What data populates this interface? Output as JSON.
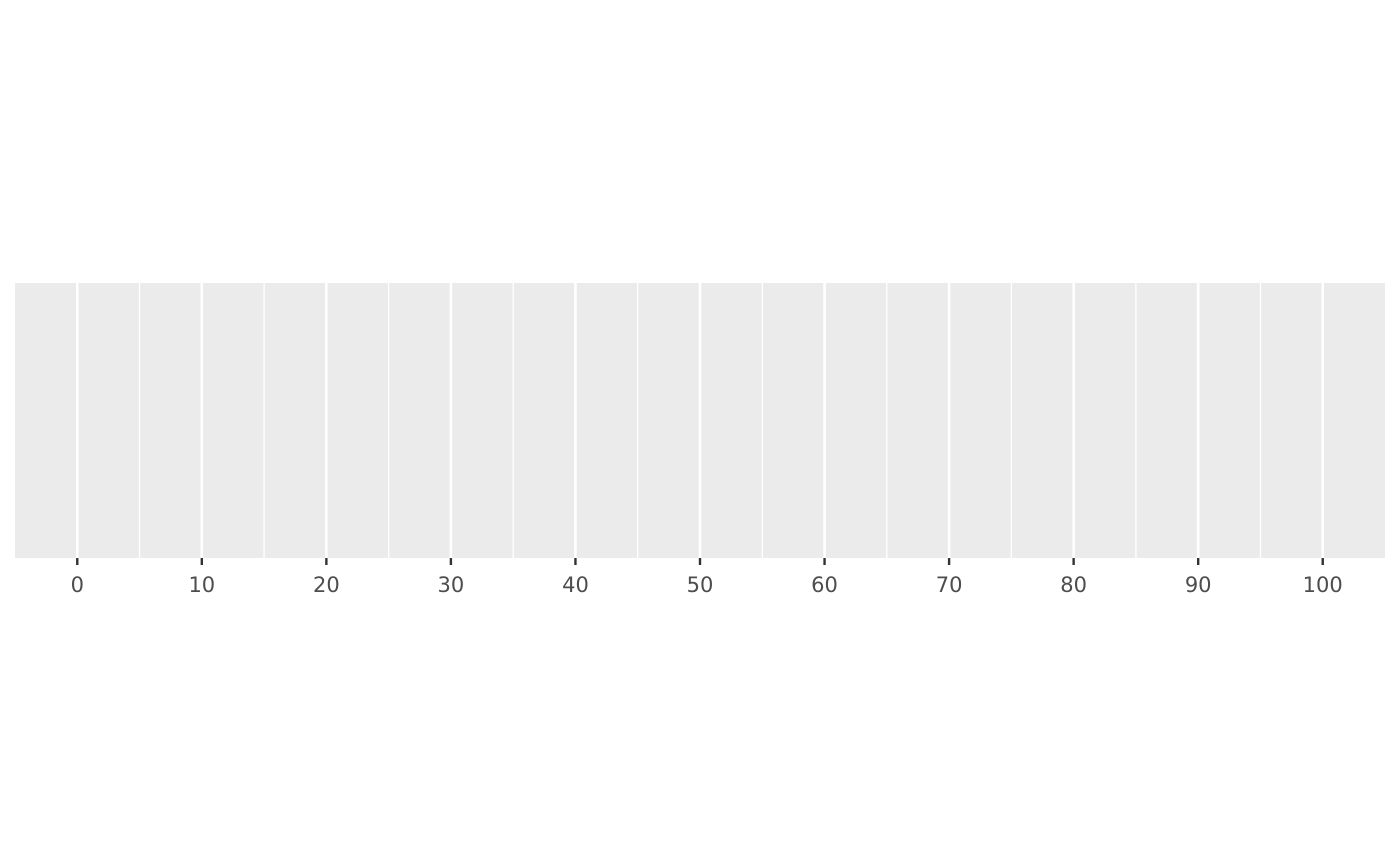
{
  "chart_data": {
    "type": "scatter",
    "title": "",
    "xlabel": "",
    "ylabel": "",
    "xlim": [
      -5,
      105
    ],
    "x_ticks": [
      0,
      10,
      20,
      30,
      40,
      50,
      60,
      70,
      80,
      90,
      100
    ],
    "x_tick_labels": [
      "0",
      "10",
      "20",
      "30",
      "40",
      "50",
      "60",
      "70",
      "80",
      "90",
      "100"
    ],
    "x_minor_gridlines": [
      5,
      15,
      25,
      35,
      45,
      55,
      65,
      75,
      85,
      95
    ],
    "y_axis_visible": false,
    "grid": true,
    "series": [],
    "colors": {
      "panel_background": "#ebebeb",
      "grid_major": "#ffffff",
      "grid_minor": "#ffffff",
      "tick_mark": "#333333",
      "tick_label": "#4d4d4d"
    }
  }
}
